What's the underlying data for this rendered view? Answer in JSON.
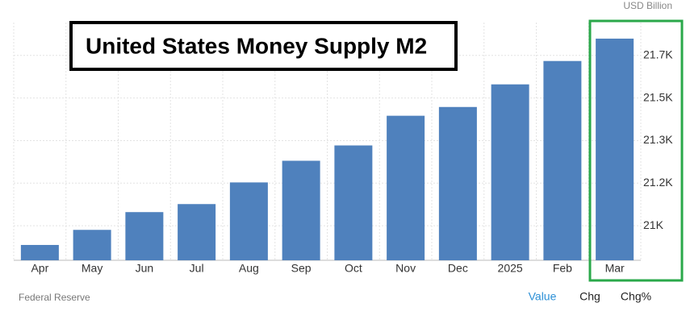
{
  "chart_data": {
    "type": "bar",
    "title": "United States Money Supply M2",
    "unit_label": "USD Billion",
    "source": "Federal Reserve",
    "tabs": [
      "Value",
      "Chg",
      "Chg%"
    ],
    "categories": [
      "Apr",
      "May",
      "Jun",
      "Jul",
      "Aug",
      "Sep",
      "Oct",
      "Nov",
      "Dec",
      "2025",
      "Feb",
      "Mar"
    ],
    "values": [
      20921,
      20983,
      21056,
      21089,
      21178,
      21267,
      21330,
      21452,
      21488,
      21581,
      21677,
      21769
    ],
    "color": "#4f81bd",
    "ylim": [
      20858,
      21835
    ],
    "yticks": [
      {
        "value": 21000,
        "label": "21K"
      },
      {
        "value": 21175,
        "label": "21.2K"
      },
      {
        "value": 21350,
        "label": "21.3K"
      },
      {
        "value": 21525,
        "label": "21.5K"
      },
      {
        "value": 21700,
        "label": "21.7K"
      }
    ],
    "grid": true
  }
}
